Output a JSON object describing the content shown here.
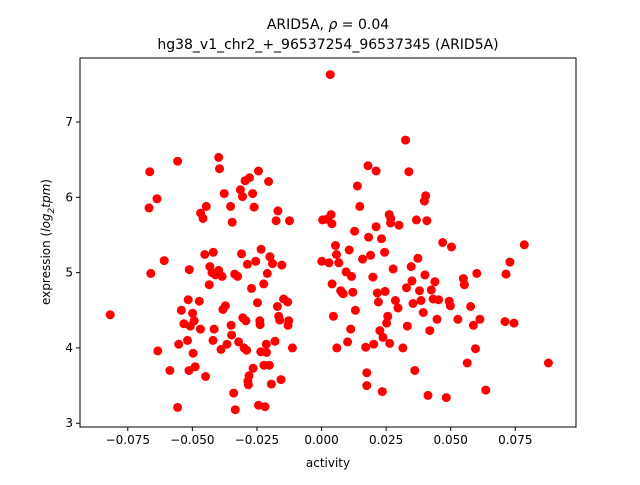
{
  "chart_data": {
    "type": "scatter",
    "title_gene": "ARID5A",
    "title_rho_prefix": ", ",
    "title_rho_symbol": "ρ",
    "title_rho_value": " = 0.04",
    "subtitle": "hg38_v1_chr2_+_96537254_96537345 (ARID5A)",
    "xlabel": "activity",
    "ylabel_main": "expression (",
    "ylabel_log": "log",
    "ylabel_sub": "2",
    "ylabel_tpm": "tpm",
    "ylabel_close": ")",
    "xlim": [
      -0.0935,
      0.0985
    ],
    "ylim": [
      2.95,
      7.85
    ],
    "xticks": [
      -0.075,
      -0.05,
      -0.025,
      0.0,
      0.025,
      0.05,
      0.075
    ],
    "xtick_labels": [
      "−0.075",
      "−0.050",
      "−0.025",
      "0.000",
      "0.025",
      "0.050",
      "0.075"
    ],
    "yticks": [
      3,
      4,
      5,
      6,
      7
    ],
    "ytick_labels": [
      "3",
      "4",
      "5",
      "6",
      "7"
    ],
    "grid": false,
    "marker_color": "#ff0000",
    "points": [
      [
        -0.0818,
        4.44
      ],
      [
        -0.0665,
        6.34
      ],
      [
        -0.0668,
        5.86
      ],
      [
        -0.0637,
        5.98
      ],
      [
        -0.0661,
        4.99
      ],
      [
        -0.0634,
        3.96
      ],
      [
        -0.0609,
        5.16
      ],
      [
        -0.0587,
        3.7
      ],
      [
        -0.0557,
        6.48
      ],
      [
        -0.0557,
        3.21
      ],
      [
        -0.0543,
        4.5
      ],
      [
        -0.0533,
        4.32
      ],
      [
        -0.0553,
        4.05
      ],
      [
        -0.0519,
        4.1
      ],
      [
        -0.0516,
        4.64
      ],
      [
        -0.0513,
        3.7
      ],
      [
        -0.0512,
        5.04
      ],
      [
        -0.0508,
        4.29
      ],
      [
        -0.0499,
        4.46
      ],
      [
        -0.0497,
        3.93
      ],
      [
        -0.0493,
        4.36
      ],
      [
        -0.0489,
        3.75
      ],
      [
        -0.0473,
        4.62
      ],
      [
        -0.0469,
        4.25
      ],
      [
        -0.0468,
        5.79
      ],
      [
        -0.0459,
        5.72
      ],
      [
        -0.0452,
        5.24
      ],
      [
        -0.0449,
        3.62
      ],
      [
        -0.0446,
        5.88
      ],
      [
        -0.0435,
        4.84
      ],
      [
        -0.0432,
        5.08
      ],
      [
        -0.0424,
        5.0
      ],
      [
        -0.042,
        4.1
      ],
      [
        -0.0419,
        5.27
      ],
      [
        -0.0416,
        4.25
      ],
      [
        -0.041,
        4.97
      ],
      [
        -0.0398,
        5.03
      ],
      [
        -0.0398,
        6.53
      ],
      [
        -0.0395,
        6.38
      ],
      [
        -0.0389,
        3.98
      ],
      [
        -0.0385,
        4.95
      ],
      [
        -0.0382,
        4.51
      ],
      [
        -0.0377,
        6.05
      ],
      [
        -0.0372,
        4.56
      ],
      [
        -0.0366,
        4.05
      ],
      [
        -0.0352,
        5.88
      ],
      [
        -0.035,
        4.3
      ],
      [
        -0.0348,
        4.17
      ],
      [
        -0.0346,
        5.67
      ],
      [
        -0.034,
        3.4
      ],
      [
        -0.0336,
        4.98
      ],
      [
        -0.0334,
        3.18
      ],
      [
        -0.0325,
        4.95
      ],
      [
        -0.0321,
        4.08
      ],
      [
        -0.0314,
        6.1
      ],
      [
        -0.031,
        5.25
      ],
      [
        -0.0306,
        6.01
      ],
      [
        -0.0305,
        4.4
      ],
      [
        -0.03,
        4.0
      ],
      [
        -0.0296,
        6.22
      ],
      [
        -0.0293,
        4.36
      ],
      [
        -0.029,
        3.97
      ],
      [
        -0.0287,
        5.11
      ],
      [
        -0.0285,
        3.56
      ],
      [
        -0.0283,
        3.51
      ],
      [
        -0.0281,
        3.63
      ],
      [
        -0.0279,
        6.26
      ],
      [
        -0.0271,
        4.79
      ],
      [
        -0.0267,
        6.05
      ],
      [
        -0.0265,
        3.73
      ],
      [
        -0.0261,
        5.87
      ],
      [
        -0.0255,
        5.15
      ],
      [
        -0.0248,
        4.6
      ],
      [
        -0.0244,
        6.35
      ],
      [
        -0.0244,
        3.24
      ],
      [
        -0.0239,
        4.36
      ],
      [
        -0.0238,
        4.31
      ],
      [
        -0.0235,
        3.95
      ],
      [
        -0.0234,
        5.31
      ],
      [
        -0.0224,
        4.85
      ],
      [
        -0.0223,
        3.77
      ],
      [
        -0.0219,
        3.22
      ],
      [
        -0.0214,
        4.05
      ],
      [
        -0.0213,
        3.94
      ],
      [
        -0.021,
        4.99
      ],
      [
        -0.0205,
        6.21
      ],
      [
        -0.0202,
        3.77
      ],
      [
        -0.02,
        5.21
      ],
      [
        -0.0194,
        3.52
      ],
      [
        -0.019,
        5.12
      ],
      [
        -0.018,
        4.09
      ],
      [
        -0.0176,
        5.69
      ],
      [
        -0.0171,
        4.55
      ],
      [
        -0.0169,
        5.82
      ],
      [
        -0.0166,
        4.42
      ],
      [
        -0.0162,
        4.37
      ],
      [
        -0.0157,
        3.58
      ],
      [
        -0.0154,
        5.1
      ],
      [
        -0.0147,
        4.65
      ],
      [
        -0.0131,
        4.61
      ],
      [
        -0.013,
        4.3
      ],
      [
        -0.0127,
        4.36
      ],
      [
        -0.0124,
        5.69
      ],
      [
        0.0034,
        7.63
      ],
      [
        -0.0113,
        4.0
      ],
      [
        0.0001,
        5.15
      ],
      [
        0.0004,
        5.7
      ],
      [
        0.0021,
        5.71
      ],
      [
        0.0029,
        5.13
      ],
      [
        0.0037,
        5.77
      ],
      [
        0.004,
        5.65
      ],
      [
        0.0041,
        4.85
      ],
      [
        0.0046,
        4.42
      ],
      [
        0.0054,
        5.36
      ],
      [
        0.0058,
        5.24
      ],
      [
        0.0059,
        4.0
      ],
      [
        0.0067,
        5.13
      ],
      [
        0.0074,
        4.76
      ],
      [
        0.008,
        4.73
      ],
      [
        0.0084,
        4.72
      ],
      [
        0.0095,
        5.01
      ],
      [
        0.0101,
        4.08
      ],
      [
        0.0107,
        5.3
      ],
      [
        0.0113,
        4.25
      ],
      [
        0.0116,
        4.95
      ],
      [
        0.0121,
        4.74
      ],
      [
        0.0128,
        5.55
      ],
      [
        0.0131,
        4.5
      ],
      [
        0.0139,
        6.15
      ],
      [
        0.0148,
        5.88
      ],
      [
        0.0159,
        5.18
      ],
      [
        0.0171,
        4.01
      ],
      [
        0.0175,
        3.67
      ],
      [
        0.0175,
        3.5
      ],
      [
        0.018,
        6.42
      ],
      [
        0.0182,
        5.47
      ],
      [
        0.019,
        5.23
      ],
      [
        0.0199,
        4.94
      ],
      [
        0.0202,
        4.05
      ],
      [
        0.0211,
        6.35
      ],
      [
        0.0211,
        5.61
      ],
      [
        0.0216,
        4.73
      ],
      [
        0.022,
        4.61
      ],
      [
        0.0226,
        4.23
      ],
      [
        0.0232,
        5.45
      ],
      [
        0.0235,
        3.42
      ],
      [
        0.0238,
        4.14
      ],
      [
        0.0244,
        5.27
      ],
      [
        0.0246,
        4.75
      ],
      [
        0.0252,
        4.33
      ],
      [
        0.0256,
        4.42
      ],
      [
        0.0262,
        5.77
      ],
      [
        0.0264,
        4.06
      ],
      [
        0.0267,
        5.66
      ],
      [
        0.0268,
        5.72
      ],
      [
        0.0277,
        5.05
      ],
      [
        0.0286,
        4.63
      ],
      [
        0.0296,
        4.53
      ],
      [
        0.03,
        5.63
      ],
      [
        0.0315,
        4.0
      ],
      [
        0.0325,
        6.76
      ],
      [
        0.0329,
        4.8
      ],
      [
        0.0332,
        4.29
      ],
      [
        0.0338,
        6.34
      ],
      [
        0.0347,
        5.08
      ],
      [
        0.035,
        4.89
      ],
      [
        0.0354,
        4.59
      ],
      [
        0.0361,
        3.7
      ],
      [
        0.0367,
        5.7
      ],
      [
        0.0373,
        5.19
      ],
      [
        0.0379,
        4.76
      ],
      [
        0.0385,
        4.63
      ],
      [
        0.0394,
        4.47
      ],
      [
        0.0398,
        5.95
      ],
      [
        0.04,
        4.97
      ],
      [
        0.0403,
        6.02
      ],
      [
        0.0408,
        5.69
      ],
      [
        0.0412,
        3.37
      ],
      [
        0.0419,
        4.23
      ],
      [
        0.0425,
        4.77
      ],
      [
        0.0432,
        4.65
      ],
      [
        0.0439,
        4.88
      ],
      [
        0.0447,
        4.38
      ],
      [
        0.0453,
        4.64
      ],
      [
        0.0469,
        5.4
      ],
      [
        0.0483,
        3.34
      ],
      [
        0.0494,
        4.62
      ],
      [
        0.0499,
        4.56
      ],
      [
        0.0503,
        5.34
      ],
      [
        0.0528,
        4.38
      ],
      [
        0.0549,
        4.92
      ],
      [
        0.0553,
        4.84
      ],
      [
        0.0564,
        3.8
      ],
      [
        0.0577,
        4.55
      ],
      [
        0.0588,
        4.3
      ],
      [
        0.0596,
        3.99
      ],
      [
        0.0601,
        4.99
      ],
      [
        0.0613,
        4.38
      ],
      [
        0.0636,
        3.44
      ],
      [
        0.071,
        4.35
      ],
      [
        0.0714,
        4.98
      ],
      [
        0.0729,
        5.14
      ],
      [
        0.0745,
        4.33
      ],
      [
        0.0785,
        5.37
      ],
      [
        0.0878,
        3.8
      ]
    ]
  }
}
